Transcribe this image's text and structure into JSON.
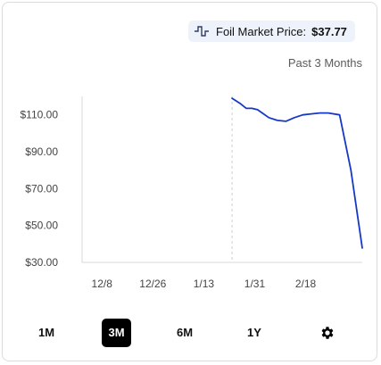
{
  "header": {
    "price_label": "Foil Market Price:",
    "price_value": "$37.77",
    "period_label": "Past 3 Months"
  },
  "ranges": [
    {
      "label": "1M",
      "active": false
    },
    {
      "label": "3M",
      "active": true
    },
    {
      "label": "6M",
      "active": false
    },
    {
      "label": "1Y",
      "active": false
    }
  ],
  "settings_icon": "gear-icon",
  "colors": {
    "line": "#1638c8",
    "axis": "#d8d8d8",
    "pill_bg": "#eef3fb"
  },
  "chart_data": {
    "type": "line",
    "title": "",
    "xlabel": "",
    "ylabel": "",
    "ylim": [
      30,
      120
    ],
    "yticks": [
      "$110.00",
      "$90.00",
      "$70.00",
      "$50.00",
      "$30.00"
    ],
    "ytick_values": [
      110,
      90,
      70,
      50,
      30
    ],
    "xticks": [
      "12/8",
      "12/26",
      "1/13",
      "1/31",
      "2/18"
    ],
    "xlim": [
      "12/1",
      "3/9"
    ],
    "xtick_dates": [
      "12/8",
      "12/26",
      "1/13",
      "1/31",
      "2/18"
    ],
    "marker_date": "1/23",
    "series": [
      {
        "name": "",
        "x": [
          "1/23",
          "1/26",
          "1/28",
          "1/30",
          "2/1",
          "2/5",
          "2/8",
          "2/11",
          "2/14",
          "2/17",
          "2/20",
          "2/23",
          "2/26",
          "3/1",
          "3/5",
          "3/9"
        ],
        "values": [
          119,
          116,
          113.5,
          113.5,
          112.8,
          108.5,
          107,
          106.5,
          108.5,
          110,
          110.5,
          111,
          111,
          110,
          80,
          37.77
        ]
      }
    ]
  }
}
